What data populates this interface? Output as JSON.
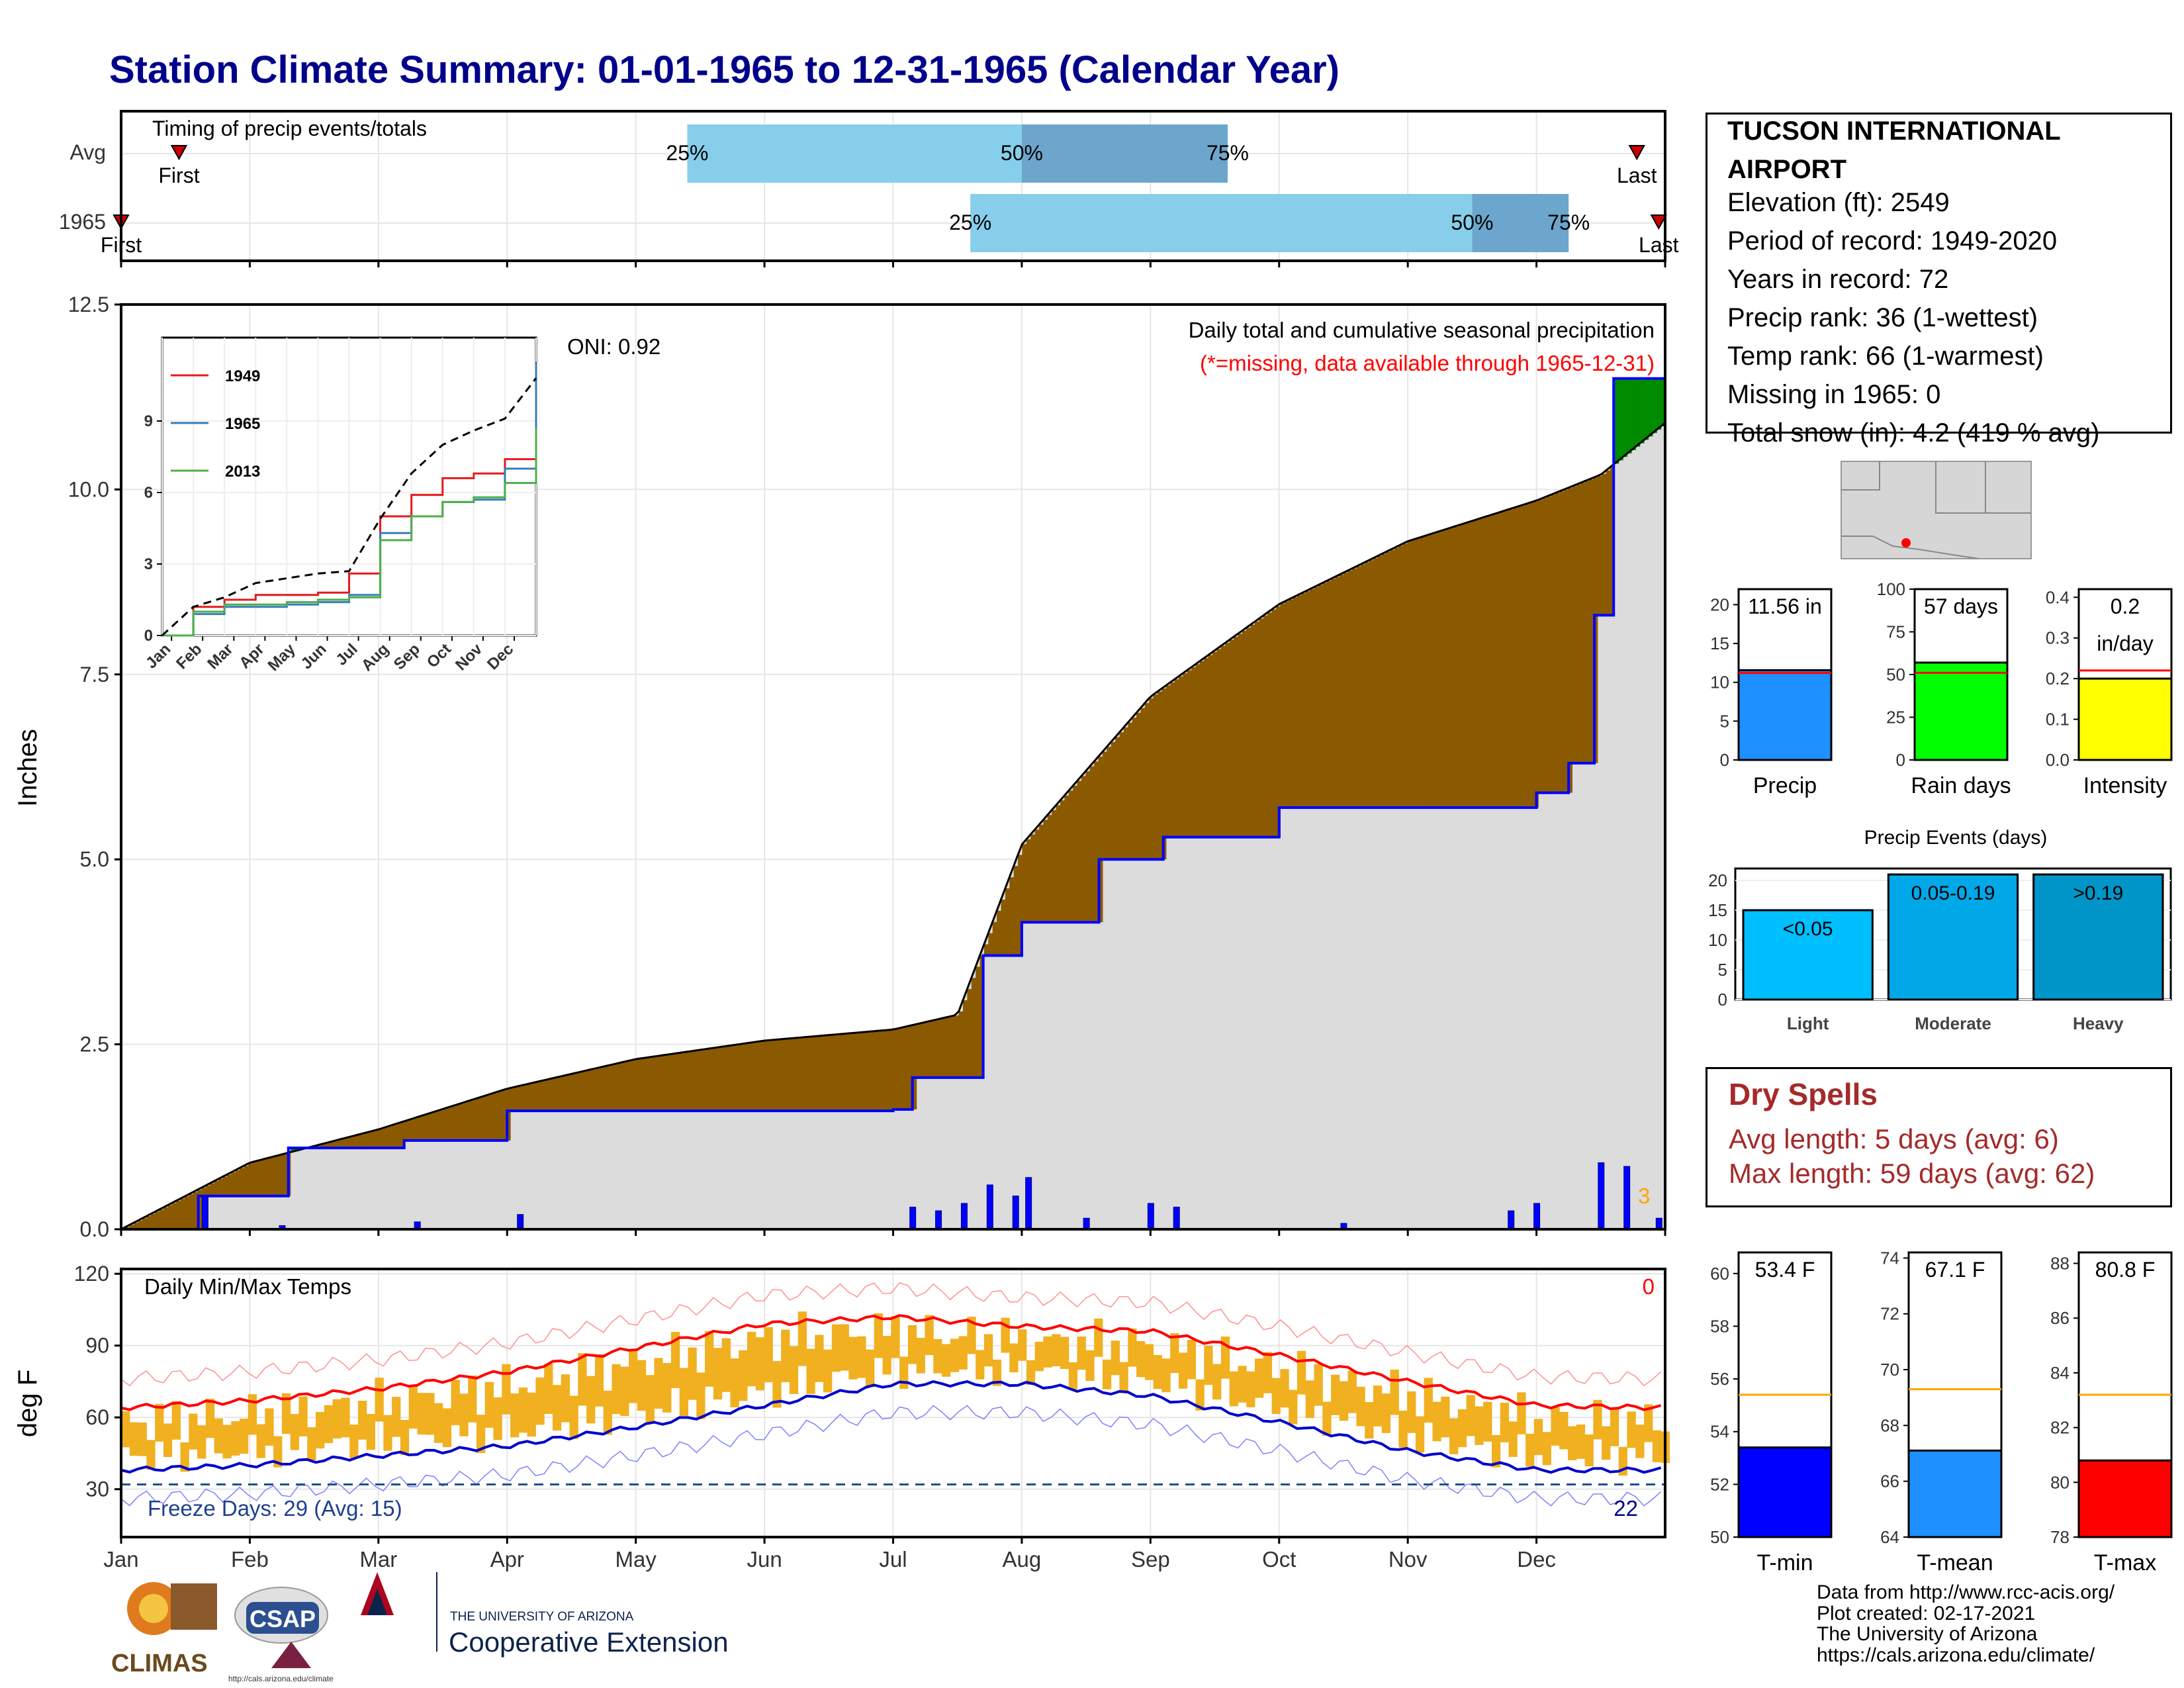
{
  "title": "Station Climate Summary: 01-01-1965 to 12-31-1965 (Calendar Year)",
  "timing": {
    "label": "Timing of precip events/totals",
    "rows": [
      {
        "name": "Avg",
        "first": "First",
        "last": "Last",
        "q25": "25%",
        "q50": "50%",
        "q75": "75%"
      },
      {
        "name": "1965",
        "first": "First",
        "last": "Last",
        "q25": "25%",
        "q50": "50%",
        "q75": "75%"
      }
    ],
    "colors": {
      "light": "#87ceeb",
      "dark": "#6ca6cd"
    }
  },
  "precip_panel": {
    "ylabel": "Inches",
    "yticks": [
      "0.0",
      "2.5",
      "5.0",
      "7.5",
      "10.0",
      "12.5"
    ],
    "oni": "ONI: 0.92",
    "header": "Daily total and cumulative seasonal precipitation",
    "subheader": "(*=missing, data available through 1965-12-31)",
    "extreme_count": "3",
    "colors": {
      "deficit": "#8b5a00",
      "surplus": "#008b00",
      "normal_fill": "#dcdcdc",
      "observed": "#0000ff"
    }
  },
  "inset": {
    "yticks": [
      "0",
      "3",
      "6",
      "9"
    ],
    "xticks": [
      "Jan",
      "Feb",
      "Mar",
      "Apr",
      "May",
      "Jun",
      "Jul",
      "Aug",
      "Sep",
      "Oct",
      "Nov",
      "Dec"
    ],
    "legend": [
      {
        "name": "1949",
        "color": "#e41a1c"
      },
      {
        "name": "1965",
        "color": "#377eb8"
      },
      {
        "name": "2013",
        "color": "#4daf4a"
      }
    ]
  },
  "temp_panel": {
    "ylabel": "deg F",
    "yticks": [
      "30",
      "60",
      "90",
      "120"
    ],
    "label": "Daily Min/Max Temps",
    "count_top": "0",
    "freeze": "Freeze Days: 29 (Avg: 15)",
    "count_bottom": "22",
    "colors": {
      "bars": "#f0b020",
      "max_line": "#ff0000",
      "min_line": "#0000cd"
    }
  },
  "months": [
    "Jan",
    "Feb",
    "Mar",
    "Apr",
    "May",
    "Jun",
    "Jul",
    "Aug",
    "Sep",
    "Oct",
    "Nov",
    "Dec"
  ],
  "station": {
    "name_line1": "TUCSON INTERNATIONAL",
    "name_line2": "AIRPORT",
    "lines": [
      "Elevation (ft): 2549",
      "Period of record: 1949-2020",
      "Years in record: 72",
      "Precip rank: 36 (1-wettest)",
      "Temp rank: 66 (1-warmest)",
      "Missing in 1965: 0",
      "Total snow (in): 4.2 (419 % avg)"
    ]
  },
  "dry_spells": {
    "title": "Dry Spells",
    "avg_length": "Avg length: 5 days (avg: 6)",
    "max_length": "Max length: 59 days (avg: 62)",
    "color": "#a52a2a"
  },
  "events_title": "Precip Events (days)",
  "footer": {
    "lines": [
      "Data from http://www.rcc-acis.org/",
      "Plot created: 02-17-2021",
      "The University of Arizona",
      "https://cals.arizona.edu/climate/"
    ],
    "climas": "CLIMAS",
    "csap": "CSAP",
    "univ": "THE UNIVERSITY OF ARIZONA",
    "extension": "Cooperative Extension",
    "csap_url": "http://cals.arizona.edu/climate"
  },
  "chart_data": [
    {
      "type": "area",
      "title": "Daily total and cumulative seasonal precipitation",
      "ylabel": "Inches",
      "ylim": [
        0,
        12.5
      ],
      "x_unit": "month of 1965",
      "series": [
        {
          "name": "",
          "x": [
            0,
            1,
            2,
            3,
            4,
            5,
            6,
            6.5,
            7,
            8,
            9,
            10,
            11,
            11.5,
            12
          ],
          "values": [
            0,
            0.9,
            1.35,
            1.9,
            2.3,
            2.55,
            2.7,
            2.9,
            5.2,
            7.2,
            8.45,
            9.3,
            9.85,
            10.2,
            10.9
          ]
        },
        {
          "name": "",
          "x": [
            0,
            0.6,
            1.3,
            1.9,
            2.2,
            3.0,
            4.0,
            5.0,
            6.0,
            6.15,
            6.7,
            7.0,
            7.6,
            8.1,
            9.0,
            11.0,
            11.25,
            11.45,
            11.6,
            12
          ],
          "values": [
            0,
            0.45,
            1.1,
            1.1,
            1.2,
            1.6,
            1.6,
            1.6,
            1.62,
            2.05,
            3.7,
            4.15,
            5.0,
            5.3,
            5.7,
            5.9,
            6.3,
            8.3,
            11.5,
            11.6
          ]
        }
      ],
      "daily_bars": [
        {
          "x": 0.65,
          "value": 0.45
        },
        {
          "x": 1.25,
          "value": 0.05
        },
        {
          "x": 2.3,
          "value": 0.1
        },
        {
          "x": 3.1,
          "value": 0.2
        },
        {
          "x": 6.15,
          "value": 0.3
        },
        {
          "x": 6.35,
          "value": 0.25
        },
        {
          "x": 6.55,
          "value": 0.35
        },
        {
          "x": 6.75,
          "value": 0.6
        },
        {
          "x": 6.95,
          "value": 0.45
        },
        {
          "x": 7.05,
          "value": 0.7
        },
        {
          "x": 7.5,
          "value": 0.15
        },
        {
          "x": 8.0,
          "value": 0.35
        },
        {
          "x": 8.2,
          "value": 0.3
        },
        {
          "x": 9.5,
          "value": 0.08
        },
        {
          "x": 10.8,
          "value": 0.25
        },
        {
          "x": 11.0,
          "value": 0.35
        },
        {
          "x": 11.5,
          "value": 0.9
        },
        {
          "x": 11.7,
          "value": 0.85
        },
        {
          "x": 11.95,
          "value": 0.15
        }
      ]
    },
    {
      "type": "line",
      "title": "",
      "ylim": [
        0,
        12.5
      ],
      "x": [
        0,
        1,
        2,
        3,
        4,
        5,
        6,
        7,
        8,
        9,
        10,
        11,
        12
      ],
      "series": [
        {
          "name": "1949",
          "values": [
            0,
            1.2,
            1.5,
            1.7,
            1.7,
            1.8,
            2.6,
            5.0,
            5.9,
            6.6,
            6.8,
            7.4,
            7.8
          ]
        },
        {
          "name": "1965",
          "values": [
            0,
            0.9,
            1.2,
            1.2,
            1.3,
            1.4,
            1.7,
            4.3,
            5.0,
            5.6,
            5.7,
            7.0,
            11.5
          ]
        },
        {
          "name": "2013",
          "values": [
            0,
            1.0,
            1.3,
            1.3,
            1.4,
            1.5,
            1.6,
            4.0,
            5.0,
            5.6,
            5.8,
            6.4,
            8.7
          ]
        },
        {
          "name": "",
          "values": [
            0,
            1.2,
            1.6,
            2.2,
            2.4,
            2.6,
            2.7,
            4.9,
            6.8,
            8.0,
            8.6,
            9.1,
            10.8
          ]
        }
      ]
    },
    {
      "type": "line",
      "title": "Daily Min/Max Temps",
      "ylabel": "deg F",
      "ylim": [
        10,
        122
      ],
      "x": [
        0,
        1,
        2,
        3,
        4,
        5,
        6,
        7,
        8,
        9,
        10,
        11,
        12
      ],
      "series": [
        {
          "name": "",
          "values": [
            64,
            67,
            72,
            79,
            89,
            99,
            102,
            98,
            96,
            86,
            75,
            65,
            64
          ]
        },
        {
          "name": "",
          "values": [
            38,
            40,
            44,
            48,
            56,
            65,
            74,
            74,
            69,
            58,
            46,
            38,
            38
          ]
        }
      ],
      "freeze_threshold": 32
    },
    {
      "type": "bar",
      "categories": [
        "Precip"
      ],
      "values": [
        11.56
      ],
      "labels": [
        "11.56 in"
      ],
      "average": 11.2,
      "ylim": [
        0,
        22
      ]
    },
    {
      "type": "bar",
      "categories": [
        "Rain days"
      ],
      "values": [
        57
      ],
      "labels": [
        "57 days"
      ],
      "average": 51,
      "ylim": [
        0,
        100
      ]
    },
    {
      "type": "bar",
      "categories": [
        "Intensity"
      ],
      "values": [
        0.2
      ],
      "labels": [
        "0.2 in/day"
      ],
      "average": 0.22,
      "ylim": [
        0,
        0.42
      ]
    },
    {
      "type": "bar",
      "title": "Precip Events (days)",
      "categories": [
        "Light",
        "Moderate",
        "Heavy"
      ],
      "values": [
        15,
        21,
        21
      ],
      "labels": [
        "<0.05",
        "0.05-0.19",
        ">0.19"
      ],
      "ylim": [
        0,
        22
      ]
    },
    {
      "type": "bar",
      "categories": [
        "T-min"
      ],
      "values": [
        53.4
      ],
      "labels": [
        "53.4 F"
      ],
      "average": 55.4,
      "ylim": [
        50,
        60.8
      ]
    },
    {
      "type": "bar",
      "categories": [
        "T-mean"
      ],
      "values": [
        67.1
      ],
      "labels": [
        "67.1 F"
      ],
      "average": 69.3,
      "ylim": [
        64,
        74.2
      ]
    },
    {
      "type": "bar",
      "categories": [
        "T-max"
      ],
      "values": [
        80.8
      ],
      "labels": [
        "80.8 F"
      ],
      "average": 83.2,
      "ylim": [
        78,
        88.4
      ]
    }
  ]
}
